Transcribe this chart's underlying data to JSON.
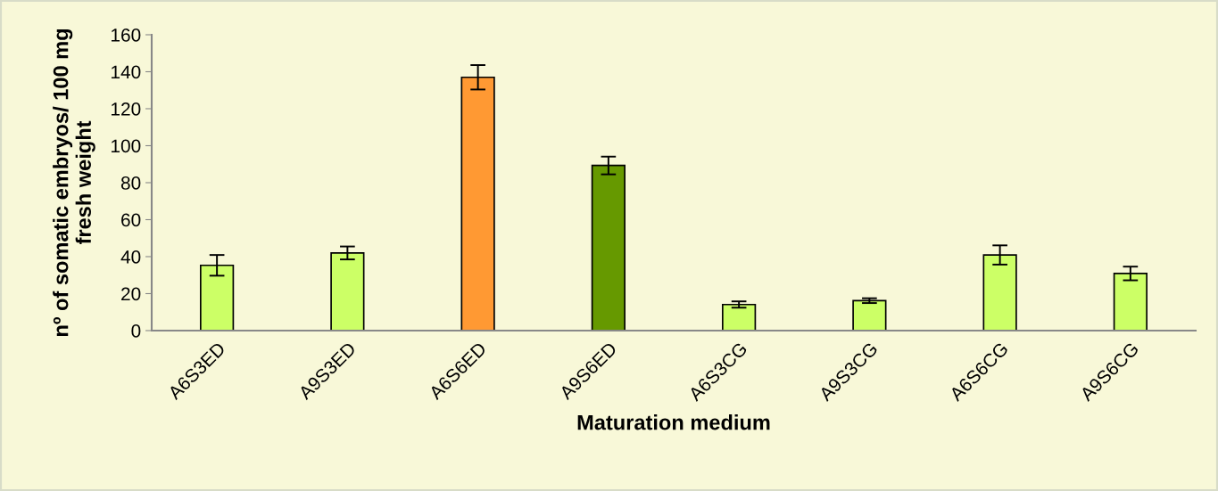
{
  "chart_data": {
    "type": "bar",
    "xlabel": "Maturation medium",
    "ylabel": "nº of somatic embryos/ 100 mg\nfresh weight",
    "categories": [
      "A6S3ED",
      "A9S3ED",
      "A6S6ED",
      "A9S6ED",
      "A6S3CG",
      "A9S3CG",
      "A6S6CG",
      "A9S6CG"
    ],
    "values": [
      35.3,
      42.0,
      137.0,
      89.3,
      14.1,
      16.2,
      40.9,
      30.9
    ],
    "errors": [
      5.6,
      3.5,
      6.6,
      4.8,
      1.7,
      1.3,
      5.2,
      3.7
    ],
    "colors": [
      "#ccff66",
      "#ccff66",
      "#ff9933",
      "#669900",
      "#ccff66",
      "#ccff66",
      "#ccff66",
      "#ccff66"
    ],
    "ylim": [
      0,
      160
    ],
    "yticks": [
      0,
      20,
      40,
      60,
      80,
      100,
      120,
      140,
      160
    ],
    "grid": false,
    "legend": false
  }
}
